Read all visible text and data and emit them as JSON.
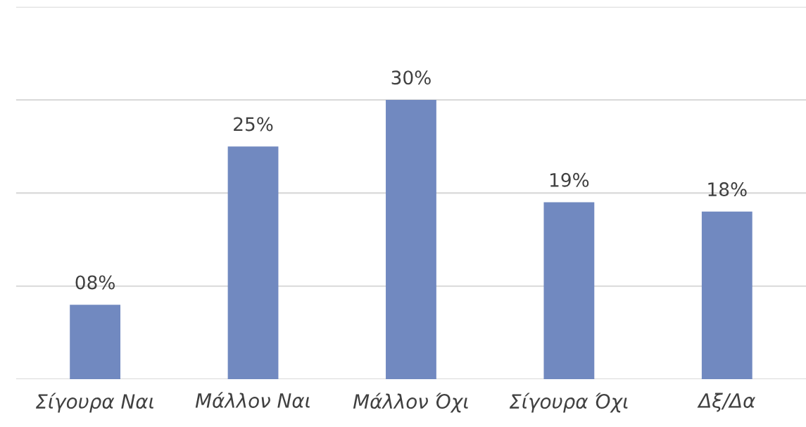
{
  "chart_data": {
    "type": "bar",
    "categories": [
      "Σίγουρα Ναι",
      "Μάλλον Ναι",
      "Μάλλον Όχι",
      "Σίγουρα Όχι",
      "Δξ/Δα"
    ],
    "values": [
      8,
      25,
      30,
      19,
      18
    ],
    "value_labels": [
      "08%",
      "25%",
      "30%",
      "19%",
      "18%"
    ],
    "color": "#7189c0",
    "ylim": [
      0,
      40
    ],
    "yticks": [
      0,
      10,
      20,
      30,
      40
    ],
    "grid": "y",
    "tick_labels": "x",
    "legend": false
  }
}
